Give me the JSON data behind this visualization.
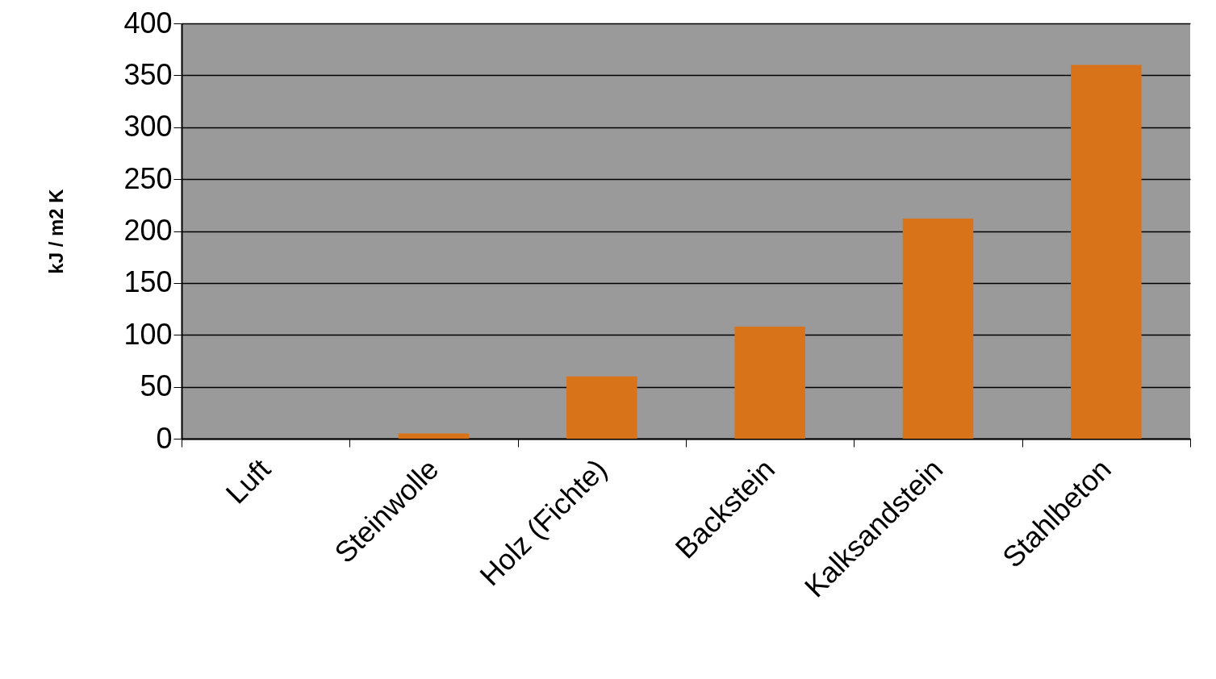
{
  "chart_data": {
    "type": "bar",
    "ylabel": "kJ / m2 K",
    "categories": [
      "Luft",
      "Steinwolle",
      "Holz (Fichte)",
      "Backstein",
      "Kalksandstein",
      "Stahlbeton"
    ],
    "values": [
      0,
      5,
      60,
      108,
      212,
      360
    ],
    "color": "#d9731a",
    "ylim": [
      0,
      400
    ],
    "yticks": [
      0,
      50,
      100,
      150,
      200,
      250,
      300,
      350,
      400
    ],
    "grid": "y"
  }
}
